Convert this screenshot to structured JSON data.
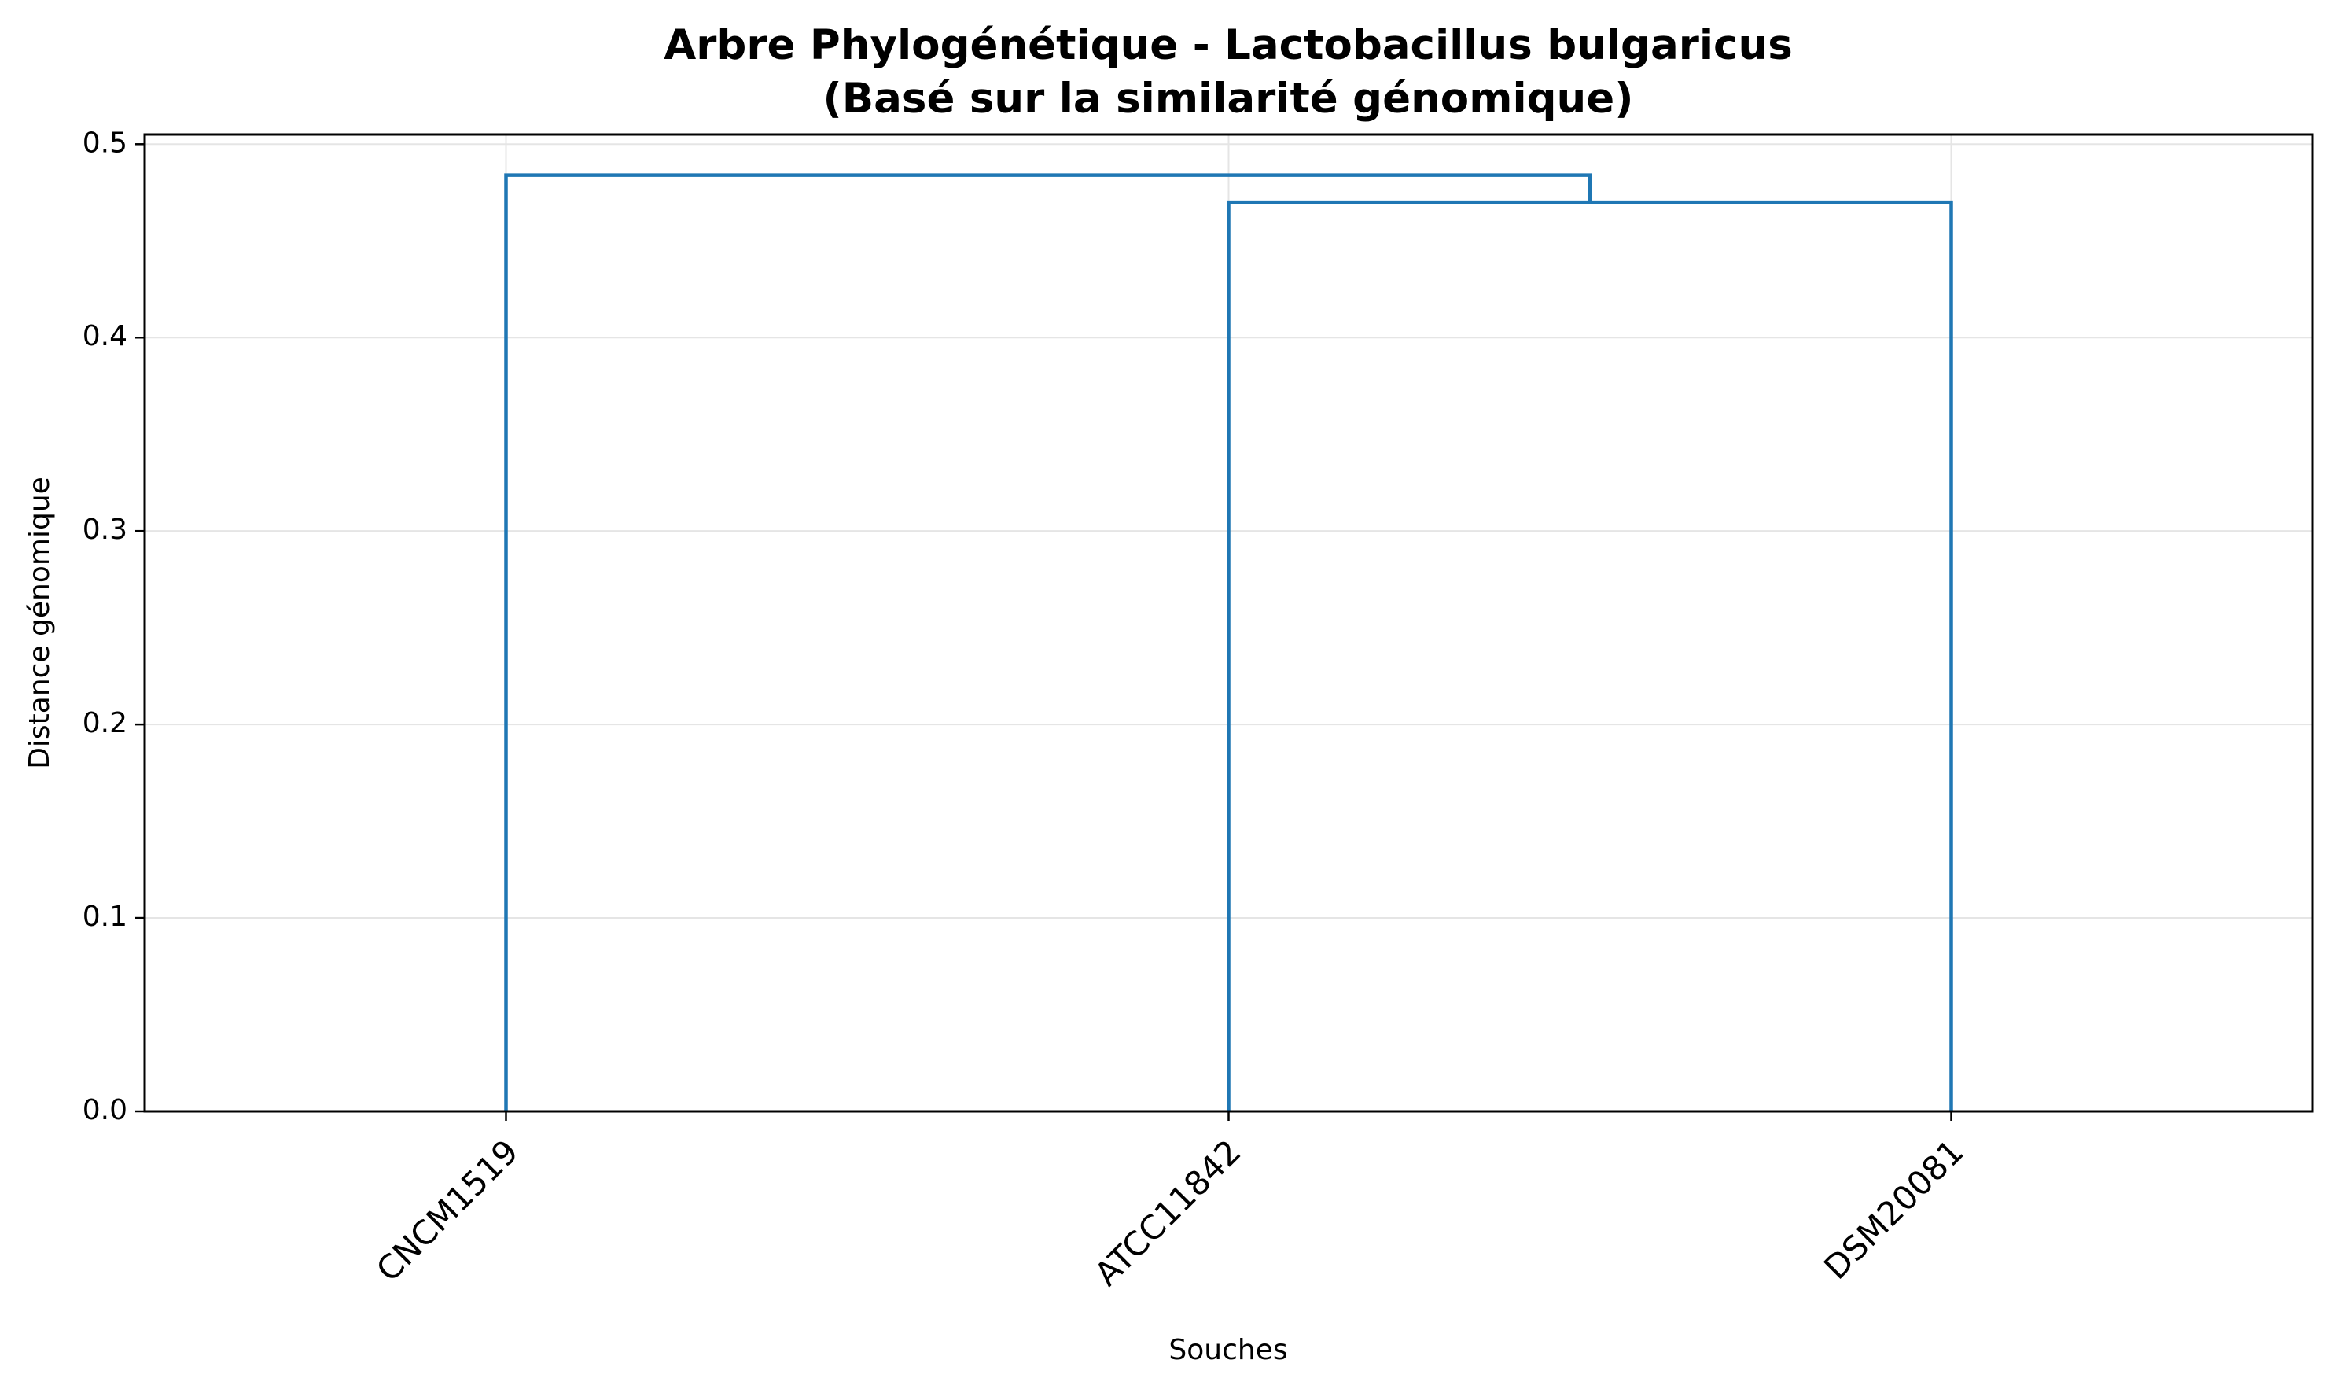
{
  "chart_data": {
    "type": "dendrogram",
    "title": [
      "Arbre Phylogénétique - Lactobacillus bulgaricus",
      "(Basé sur la similarité génomique)"
    ],
    "xlabel": "Souches",
    "ylabel": "Distance génomique",
    "leaves": [
      "CNCM1519",
      "ATCC11842",
      "DSM20081"
    ],
    "merges": [
      {
        "left": "ATCC11842",
        "right": "DSM20081",
        "height": 0.47
      },
      {
        "left": "CNCM1519",
        "right": "ATCC11842 + DSM20081",
        "height": 0.484
      }
    ],
    "ylim": [
      0,
      0.505
    ],
    "yticks": [
      0.0,
      0.1,
      0.2,
      0.3,
      0.4,
      0.5
    ],
    "ytick_labels": [
      "0.0",
      "0.1",
      "0.2",
      "0.3",
      "0.4",
      "0.5"
    ],
    "grid": true,
    "line_color": "#1f77b4",
    "grid_color": "#e5e5e5"
  }
}
